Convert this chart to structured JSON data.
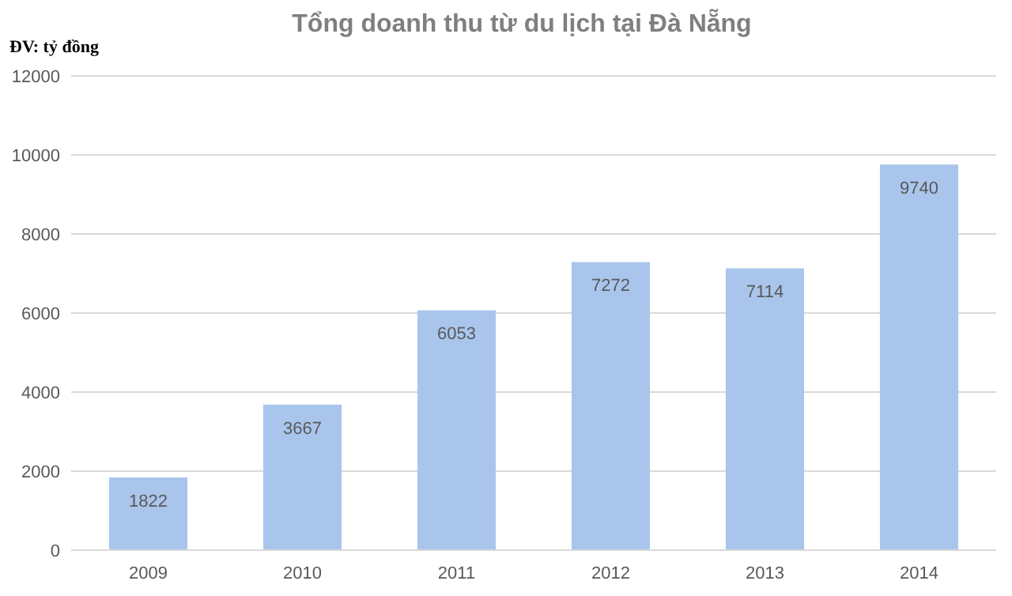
{
  "chart_data": {
    "type": "bar",
    "title": "Tổng doanh thu từ du lịch tại Đà Nẵng",
    "annotations": [
      "ĐV: tỷ đồng"
    ],
    "categories": [
      "2009",
      "2010",
      "2011",
      "2012",
      "2013",
      "2014"
    ],
    "values": [
      1822,
      3667,
      6053,
      7272,
      7114,
      9740
    ],
    "color": "#a9c5ec",
    "ylim": [
      0,
      12000
    ],
    "yticks": [
      0,
      2000,
      4000,
      6000,
      8000,
      10000,
      12000
    ],
    "grid": "y",
    "data_labels": true
  }
}
